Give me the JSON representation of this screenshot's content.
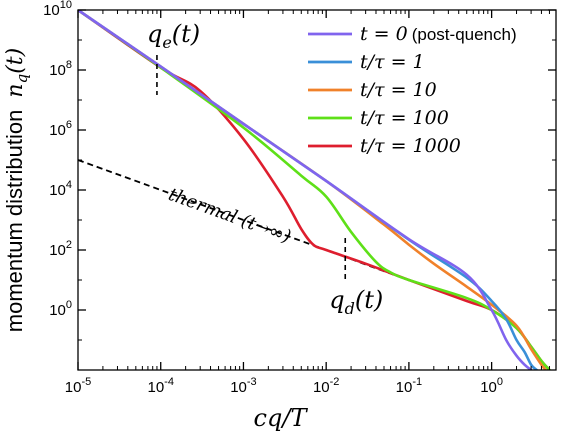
{
  "chart_data": {
    "type": "line",
    "title": "",
    "xlabel": "cq/T",
    "ylabel_text": "momentum distribution",
    "ylabel_symbol": "n",
    "ylabel_subscript": "q",
    "ylabel_suffix": "(t)",
    "xscale": "log",
    "yscale": "log",
    "xlim": [
      1e-05,
      6
    ],
    "ylim": [
      0.01,
      10000000000.0
    ],
    "x_ticks": [
      {
        "base": "10",
        "exp": "-5",
        "value": 1e-05
      },
      {
        "base": "10",
        "exp": "-4",
        "value": 0.0001
      },
      {
        "base": "10",
        "exp": "-3",
        "value": 0.001
      },
      {
        "base": "10",
        "exp": "-2",
        "value": 0.01
      },
      {
        "base": "10",
        "exp": "-1",
        "value": 0.1
      },
      {
        "base": "10",
        "exp": "0",
        "value": 1
      }
    ],
    "y_ticks": [
      {
        "base": "10",
        "exp": "0",
        "value": 1
      },
      {
        "base": "10",
        "exp": "2",
        "value": 100
      },
      {
        "base": "10",
        "exp": "4",
        "value": 10000.0
      },
      {
        "base": "10",
        "exp": "6",
        "value": 1000000.0
      },
      {
        "base": "10",
        "exp": "8",
        "value": 100000000.0
      },
      {
        "base": "10",
        "exp": "10",
        "value": 10000000000.0
      }
    ],
    "legend_position": "top-right",
    "series": [
      {
        "name": "t = 0",
        "note": "(post-quench)",
        "color": "#8064ee",
        "x": [
          1e-05,
          0.0001,
          0.001,
          0.01,
          0.1,
          0.5,
          1.0,
          1.5,
          2.0,
          2.5,
          3.0
        ],
        "y": [
          10000000000.0,
          130000000.0,
          1600000.0,
          20000.0,
          230.0,
          15,
          1,
          0.1,
          0.03,
          0.015,
          0.01
        ]
      },
      {
        "name": "t/τ = 1",
        "color": "#3a8fd8",
        "x": [
          1e-05,
          0.0001,
          0.001,
          0.01,
          0.1,
          0.5,
          1.0,
          1.5,
          2.0,
          2.5,
          3.0,
          3.5
        ],
        "y": [
          10000000000.0,
          130000000.0,
          1600000.0,
          20000.0,
          220.0,
          12,
          2,
          0.5,
          0.1,
          0.04,
          0.015,
          0.01
        ]
      },
      {
        "name": "t/τ = 10",
        "color": "#f0812a",
        "x": [
          1e-05,
          0.0001,
          0.001,
          0.01,
          0.05,
          0.1,
          0.2,
          0.5,
          1.0,
          2.0,
          3.0,
          4.0,
          4.5
        ],
        "y": [
          10000000000.0,
          130000000.0,
          1600000.0,
          20000.0,
          700.0,
          150.0,
          35,
          6,
          1.5,
          0.3,
          0.05,
          0.015,
          0.01
        ]
      },
      {
        "name": "t/τ = 100",
        "color": "#5ee018",
        "x": [
          1e-05,
          0.0001,
          0.001,
          0.005,
          0.01,
          0.02,
          0.04,
          0.06,
          0.1,
          0.5,
          1.0,
          2.0,
          3.0,
          4.0,
          5.0
        ],
        "y": [
          10000000000.0,
          120000000.0,
          1200000.0,
          30000.0,
          6000.0,
          400.0,
          40,
          18,
          10,
          2.5,
          1.0,
          0.25,
          0.06,
          0.02,
          0.01
        ]
      },
      {
        "name": "t/τ = 1000",
        "color": "#de1e2e",
        "x": [
          1e-05,
          0.0001,
          0.0003,
          0.001,
          0.003,
          0.005,
          0.007,
          0.01,
          0.03,
          0.1,
          0.5,
          1.0,
          2.0,
          3.0,
          4.0,
          5.0
        ],
        "y": [
          10000000000.0,
          120000000.0,
          20000000.0,
          500000.0,
          6000.0,
          500.0,
          150.0,
          100.0,
          35,
          10,
          2,
          1.0,
          0.25,
          0.06,
          0.02,
          0.01
        ]
      }
    ],
    "thermal": {
      "label": "thermal (t→∞)",
      "color": "#000000",
      "style": "dashed",
      "x": [
        1e-05,
        0.0001,
        0.001,
        0.01,
        0.1,
        0.5,
        1.0,
        2.0,
        3.0,
        4.0,
        5.0
      ],
      "y": [
        100000.0,
        10000.0,
        1000.0,
        100.0,
        10,
        2.5,
        1.0,
        0.25,
        0.06,
        0.02,
        0.01
      ]
    },
    "annotations": [
      {
        "id": "qe",
        "text_main": "q",
        "text_sub": "e",
        "text_suffix": "(t)",
        "x": 9e-05
      },
      {
        "id": "qd",
        "text_main": "q",
        "text_sub": "d",
        "text_suffix": "(t)",
        "x": 0.017
      }
    ]
  }
}
